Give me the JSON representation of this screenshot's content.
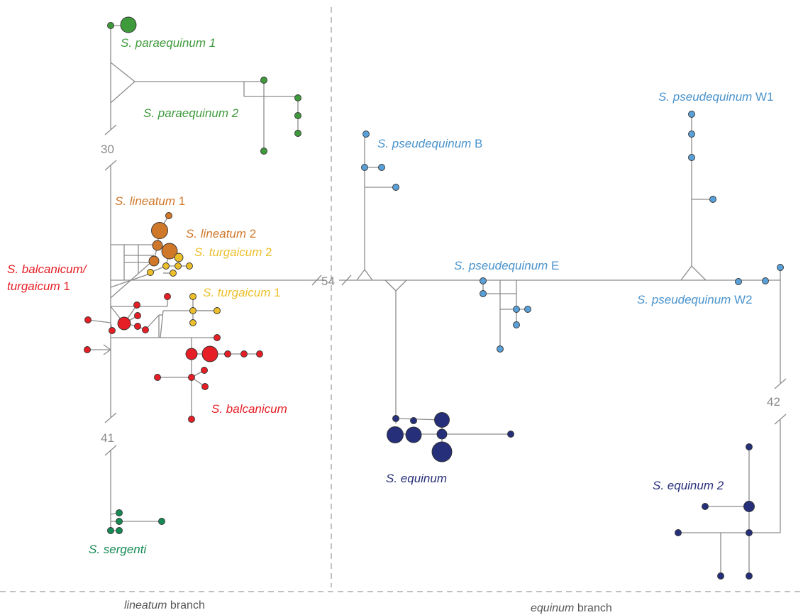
{
  "colors": {
    "line": "#8c8c8c",
    "paraequinum": "#3f9a3c",
    "lineatum": "#d0782a",
    "turgaicum": "#ecbf2a",
    "balcanicum": "#e51f25",
    "sergenti": "#158a55",
    "pseudequinum": "#5aa0d8",
    "equinum": "#252f7a",
    "pseud_label": "#4a93cc",
    "equinum_label": "#28307a"
  },
  "labels": {
    "paraequinum1": {
      "italic": "S. paraequinum 1",
      "plain": ""
    },
    "paraequinum2": {
      "italic": "S. paraequinum 2",
      "plain": ""
    },
    "lineatum1": {
      "italic": "S. lineatum",
      "plain": " 1"
    },
    "lineatum2": {
      "italic": "S. lineatum",
      "plain": " 2"
    },
    "turgaicum2": {
      "italic": "S. turgaicum",
      "plain": " 2"
    },
    "turgaicum1": {
      "italic": "S. turgaicum",
      "plain": " 1"
    },
    "balcanicum_turgaicum_a": {
      "italic": "S. balcanicum/",
      "plain": ""
    },
    "balcanicum_turgaicum_b": {
      "italic": "turgaicum",
      "plain": " 1"
    },
    "balcanicum": {
      "italic": "S. balcanicum",
      "plain": ""
    },
    "sergenti": {
      "italic": "S. sergenti",
      "plain": ""
    },
    "pseudequinumB": {
      "italic": "S. pseudequinum",
      "plain": " B"
    },
    "pseudequinumE": {
      "italic": "S. pseudequinum",
      "plain": " E"
    },
    "pseudequinumW1": {
      "italic": "S. pseudequinum",
      "plain": " W1"
    },
    "pseudequinumW2": {
      "italic": "S. pseudequinum",
      "plain": " W2"
    },
    "equinum": {
      "italic": "S. equinum",
      "plain": ""
    },
    "equinum2": {
      "italic": "S. equinum 2",
      "plain": ""
    }
  },
  "breaks": {
    "b30": "30",
    "b41": "41",
    "b54": "54",
    "b42": "42"
  },
  "branches": {
    "lineatum": {
      "italic": "lineatum",
      "plain": " branch"
    },
    "equinum": {
      "italic": "equinum",
      "plain": " branch"
    }
  }
}
